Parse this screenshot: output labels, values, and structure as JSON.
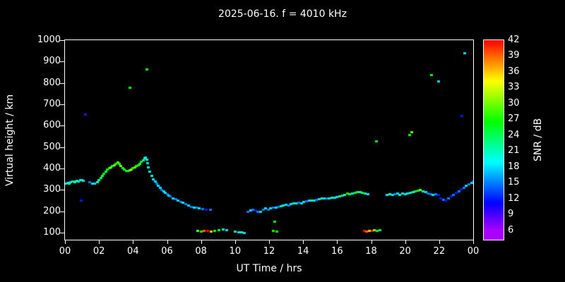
{
  "title": "2025-06-16. f = 4010 kHz",
  "colors": {
    "background": "#000000",
    "foreground": "#ffffff"
  },
  "chart_data": {
    "type": "scatter",
    "title": "2025-06-16. f = 4010 kHz",
    "xlabel": "UT Time / hrs",
    "ylabel": "Virtual height / km",
    "xlim": [
      0,
      24
    ],
    "ylim": [
      100,
      1000
    ],
    "grid": false,
    "x_tick_values": [
      0,
      2,
      4,
      6,
      8,
      10,
      12,
      14,
      16,
      18,
      20,
      22,
      24
    ],
    "x_tick_labels": [
      "00",
      "02",
      "04",
      "06",
      "08",
      "10",
      "12",
      "14",
      "16",
      "18",
      "20",
      "22",
      "00"
    ],
    "y_tick_values": [
      100,
      200,
      300,
      400,
      500,
      600,
      700,
      800,
      900,
      1000
    ],
    "colorbar": {
      "label": "SNR / dB",
      "min": 6,
      "max": 42,
      "tick_values": [
        6,
        9,
        12,
        15,
        18,
        21,
        24,
        27,
        30,
        33,
        36,
        39,
        42
      ]
    },
    "points_format": [
      "ut_hours",
      "virtual_height_km",
      "snr_db"
    ],
    "points": [
      [
        0.05,
        330,
        18
      ],
      [
        0.15,
        334,
        21
      ],
      [
        0.25,
        330,
        21
      ],
      [
        0.35,
        337,
        18
      ],
      [
        0.45,
        340,
        21
      ],
      [
        0.55,
        342,
        24
      ],
      [
        0.6,
        338,
        21
      ],
      [
        0.7,
        344,
        21
      ],
      [
        0.8,
        340,
        18
      ],
      [
        0.9,
        346,
        21
      ],
      [
        1.0,
        348,
        21
      ],
      [
        1.1,
        344,
        18
      ],
      [
        0.95,
        250,
        12
      ],
      [
        1.2,
        655,
        9
      ],
      [
        1.45,
        338,
        15
      ],
      [
        1.6,
        332,
        18
      ],
      [
        1.75,
        330,
        18
      ],
      [
        1.9,
        336,
        21
      ],
      [
        2.0,
        348,
        21
      ],
      [
        2.1,
        356,
        24
      ],
      [
        2.2,
        366,
        24
      ],
      [
        2.3,
        376,
        27
      ],
      [
        2.4,
        388,
        24
      ],
      [
        2.5,
        396,
        27
      ],
      [
        2.6,
        402,
        27
      ],
      [
        2.7,
        408,
        30
      ],
      [
        2.8,
        414,
        27
      ],
      [
        2.9,
        418,
        30
      ],
      [
        3.0,
        424,
        27
      ],
      [
        3.1,
        430,
        30
      ],
      [
        3.2,
        424,
        27
      ],
      [
        3.3,
        414,
        30
      ],
      [
        3.4,
        404,
        27
      ],
      [
        3.5,
        396,
        27
      ],
      [
        3.6,
        390,
        24
      ],
      [
        3.7,
        390,
        27
      ],
      [
        3.8,
        394,
        30
      ],
      [
        3.8,
        780,
        27
      ],
      [
        3.9,
        398,
        30
      ],
      [
        4.0,
        402,
        27
      ],
      [
        4.1,
        406,
        30
      ],
      [
        4.2,
        412,
        27
      ],
      [
        4.3,
        418,
        27
      ],
      [
        4.4,
        424,
        24
      ],
      [
        4.5,
        432,
        27
      ],
      [
        4.6,
        440,
        21
      ],
      [
        4.7,
        448,
        21
      ],
      [
        4.75,
        452,
        18
      ],
      [
        4.8,
        444,
        21
      ],
      [
        4.8,
        865,
        27
      ],
      [
        4.85,
        425,
        18
      ],
      [
        4.9,
        405,
        21
      ],
      [
        5.0,
        386,
        18
      ],
      [
        5.1,
        368,
        21
      ],
      [
        5.2,
        352,
        18
      ],
      [
        5.3,
        342,
        18
      ],
      [
        5.4,
        330,
        15
      ],
      [
        5.5,
        320,
        18
      ],
      [
        5.6,
        310,
        18
      ],
      [
        5.7,
        302,
        15
      ],
      [
        5.8,
        295,
        18
      ],
      [
        5.9,
        289,
        18
      ],
      [
        6.0,
        282,
        15
      ],
      [
        6.1,
        276,
        18
      ],
      [
        6.2,
        270,
        15
      ],
      [
        6.35,
        263,
        18
      ],
      [
        6.5,
        257,
        15
      ],
      [
        6.65,
        251,
        18
      ],
      [
        6.8,
        246,
        15
      ],
      [
        6.95,
        242,
        18
      ],
      [
        7.1,
        234,
        15
      ],
      [
        7.25,
        228,
        18
      ],
      [
        7.45,
        223,
        15
      ],
      [
        7.6,
        220,
        18
      ],
      [
        7.75,
        218,
        15
      ],
      [
        7.9,
        215,
        18
      ],
      [
        7.8,
        110,
        30
      ],
      [
        8.0,
        108,
        27
      ],
      [
        8.2,
        110,
        39
      ],
      [
        8.4,
        110,
        42
      ],
      [
        8.6,
        108,
        36
      ],
      [
        8.8,
        110,
        27
      ],
      [
        9.05,
        112,
        24
      ],
      [
        9.3,
        115,
        21
      ],
      [
        9.5,
        113,
        18
      ],
      [
        8.1,
        212,
        15
      ],
      [
        8.3,
        210,
        12
      ],
      [
        8.55,
        208,
        15
      ],
      [
        10.0,
        106,
        21
      ],
      [
        10.2,
        104,
        18
      ],
      [
        10.4,
        102,
        21
      ],
      [
        10.55,
        100,
        18
      ],
      [
        10.75,
        200,
        15
      ],
      [
        10.9,
        204,
        18
      ],
      [
        11.05,
        208,
        15
      ],
      [
        11.2,
        204,
        12
      ],
      [
        11.35,
        200,
        15
      ],
      [
        11.5,
        198,
        18
      ],
      [
        11.65,
        210,
        15
      ],
      [
        11.8,
        214,
        18
      ],
      [
        11.95,
        208,
        15
      ],
      [
        12.25,
        110,
        27
      ],
      [
        12.45,
        108,
        27
      ],
      [
        12.35,
        152,
        27
      ],
      [
        12.1,
        216,
        18
      ],
      [
        12.25,
        220,
        15
      ],
      [
        12.4,
        218,
        18
      ],
      [
        12.55,
        222,
        15
      ],
      [
        12.7,
        226,
        18
      ],
      [
        12.85,
        229,
        21
      ],
      [
        13.0,
        232,
        18
      ],
      [
        13.15,
        229,
        15
      ],
      [
        13.3,
        234,
        18
      ],
      [
        13.45,
        237,
        21
      ],
      [
        13.6,
        240,
        18
      ],
      [
        13.75,
        242,
        15
      ],
      [
        13.9,
        240,
        18
      ],
      [
        14.05,
        244,
        18
      ],
      [
        14.2,
        247,
        15
      ],
      [
        14.35,
        250,
        18
      ],
      [
        14.5,
        252,
        21
      ],
      [
        14.65,
        250,
        18
      ],
      [
        14.8,
        254,
        15
      ],
      [
        14.95,
        257,
        18
      ],
      [
        15.1,
        260,
        21
      ],
      [
        15.25,
        262,
        18
      ],
      [
        15.4,
        260,
        15
      ],
      [
        15.55,
        263,
        18
      ],
      [
        15.7,
        266,
        21
      ],
      [
        15.85,
        265,
        18
      ],
      [
        16.0,
        269,
        18
      ],
      [
        16.15,
        272,
        21
      ],
      [
        16.3,
        275,
        24
      ],
      [
        16.45,
        279,
        21
      ],
      [
        16.6,
        283,
        27
      ],
      [
        16.75,
        280,
        24
      ],
      [
        16.9,
        284,
        21
      ],
      [
        17.05,
        288,
        27
      ],
      [
        17.2,
        292,
        24
      ],
      [
        17.35,
        290,
        21
      ],
      [
        17.5,
        287,
        24
      ],
      [
        17.65,
        285,
        21
      ],
      [
        17.8,
        282,
        18
      ],
      [
        17.6,
        110,
        42
      ],
      [
        17.75,
        108,
        39
      ],
      [
        17.9,
        110,
        36
      ],
      [
        18.05,
        110,
        42
      ],
      [
        18.2,
        112,
        30
      ],
      [
        18.35,
        110,
        27
      ],
      [
        18.5,
        112,
        24
      ],
      [
        18.3,
        530,
        27
      ],
      [
        18.95,
        278,
        18
      ],
      [
        19.1,
        281,
        21
      ],
      [
        19.25,
        277,
        18
      ],
      [
        19.4,
        280,
        15
      ],
      [
        19.55,
        283,
        18
      ],
      [
        19.7,
        279,
        21
      ],
      [
        19.85,
        284,
        18
      ],
      [
        20.25,
        558,
        27
      ],
      [
        20.4,
        572,
        30
      ],
      [
        20.0,
        280,
        18
      ],
      [
        20.15,
        284,
        21
      ],
      [
        20.3,
        287,
        18
      ],
      [
        20.45,
        291,
        21
      ],
      [
        20.6,
        295,
        24
      ],
      [
        20.75,
        299,
        27
      ],
      [
        20.9,
        302,
        30
      ],
      [
        21.05,
        296,
        21
      ],
      [
        21.2,
        290,
        18
      ],
      [
        21.35,
        286,
        15
      ],
      [
        21.5,
        282,
        15
      ],
      [
        21.65,
        279,
        18
      ],
      [
        21.8,
        280,
        15
      ],
      [
        21.95,
        277,
        12
      ],
      [
        22.1,
        260,
        12
      ],
      [
        22.25,
        254,
        15
      ],
      [
        22.4,
        250,
        12
      ],
      [
        21.55,
        840,
        27
      ],
      [
        21.95,
        808,
        18
      ],
      [
        22.55,
        262,
        15
      ],
      [
        22.7,
        270,
        12
      ],
      [
        22.85,
        278,
        15
      ],
      [
        23.0,
        288,
        12
      ],
      [
        23.15,
        296,
        15
      ],
      [
        23.3,
        304,
        12
      ],
      [
        23.45,
        312,
        15
      ],
      [
        23.6,
        320,
        18
      ],
      [
        23.75,
        328,
        15
      ],
      [
        23.9,
        335,
        18
      ],
      [
        23.98,
        340,
        15
      ],
      [
        23.5,
        940,
        18
      ],
      [
        23.35,
        648,
        12
      ]
    ]
  }
}
